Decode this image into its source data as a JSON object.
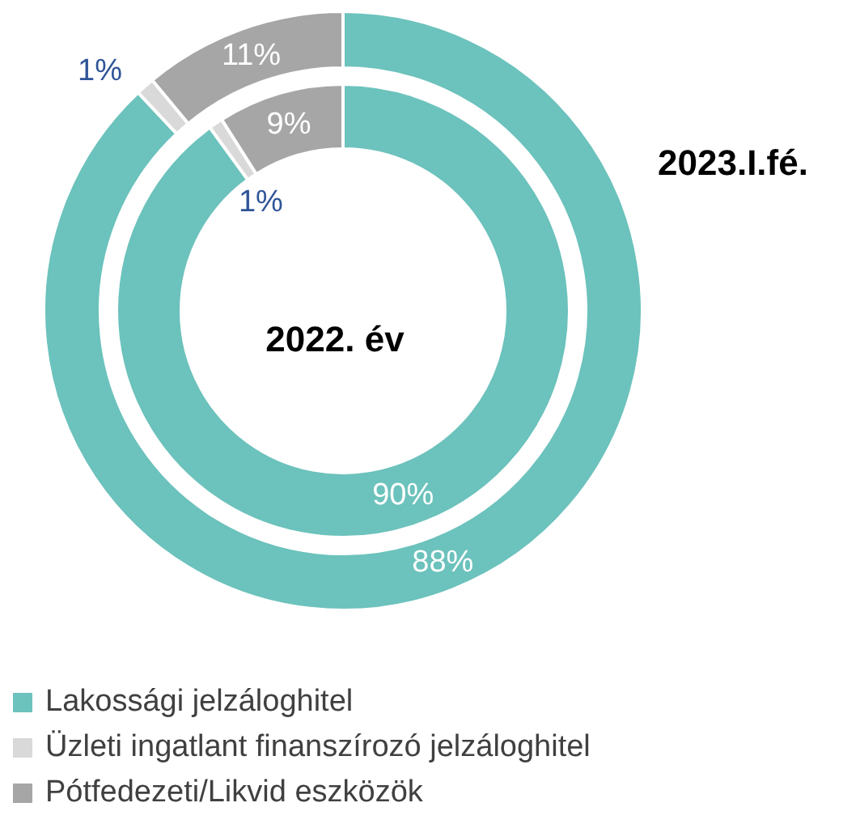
{
  "chart_data": [
    {
      "type": "donut",
      "title": "2023.I.fé.",
      "categories": [
        "Lakossági jelzáloghitel",
        "Üzleti ingatlant finanszírozó jelzáloghitel",
        "Pótfedezeti/Likvid eszközök"
      ],
      "values": [
        88,
        1,
        11
      ],
      "colors": [
        "#6cc2bc",
        "#d9d9d9",
        "#a6a6a6"
      ],
      "value_labels": [
        "88%",
        "1%",
        "11%"
      ],
      "legend": "bottom"
    },
    {
      "type": "donut",
      "title": "2022. év",
      "categories": [
        null,
        null,
        null
      ],
      "values": [
        90,
        1,
        9
      ],
      "colors": [
        "#6cc2bc",
        "#d9d9d9",
        "#a6a6a6"
      ],
      "value_labels": [
        "90%",
        "1%",
        "9%"
      ]
    }
  ]
}
